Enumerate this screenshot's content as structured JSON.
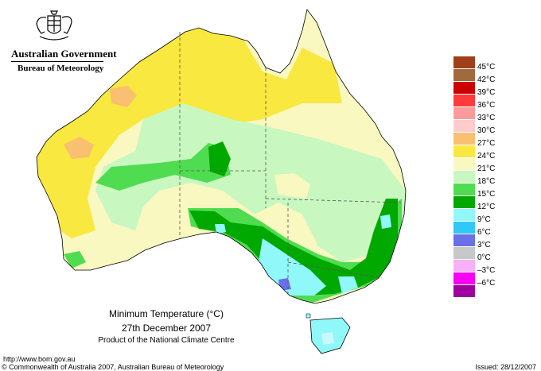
{
  "header": {
    "government": "Australian Government",
    "bureau": "Bureau of Meteorology"
  },
  "legend": {
    "items": [
      {
        "label": "45°C",
        "color": "#a0401a"
      },
      {
        "label": "42°C",
        "color": "#a06a3c"
      },
      {
        "label": "39°C",
        "color": "#cc0000"
      },
      {
        "label": "36°C",
        "color": "#ff3a3a"
      },
      {
        "label": "33°C",
        "color": "#ff9a9a"
      },
      {
        "label": "30°C",
        "color": "#ffcccc"
      },
      {
        "label": "27°C",
        "color": "#f8c070"
      },
      {
        "label": "24°C",
        "color": "#f8e840"
      },
      {
        "label": "21°C",
        "color": "#f8f8c0"
      },
      {
        "label": "18°C",
        "color": "#c8f8c0"
      },
      {
        "label": "15°C",
        "color": "#50dc50"
      },
      {
        "label": "12°C",
        "color": "#00a800"
      },
      {
        "label": "9°C",
        "color": "#90f8f8"
      },
      {
        "label": "6°C",
        "color": "#30c8f8"
      },
      {
        "label": "3°C",
        "color": "#6a70e8"
      },
      {
        "label": "0°C",
        "color": "#c8c8c8"
      },
      {
        "label": "–3°C",
        "color": "#f8b0f8"
      },
      {
        "label": "–6°C",
        "color": "#f800f8"
      },
      {
        "label": "",
        "color": "#a000a0"
      }
    ]
  },
  "map": {
    "title": "Minimum Temperature (°C)",
    "date": "27th December 2007",
    "product": "Product of the National Climate Centre"
  },
  "footer": {
    "url": "http://www.bom.gov.au",
    "copyright": "© Commonwealth of Australia 2007, Australian Bureau of Meteorology",
    "issued": "Issued: 28/12/2007"
  }
}
